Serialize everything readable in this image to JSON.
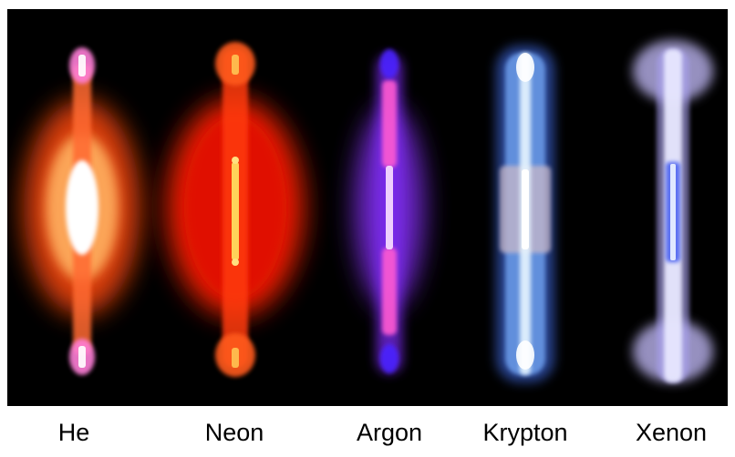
{
  "gases": [
    {
      "name": "He",
      "color": "#ff5a14",
      "core": "#ffffff",
      "accent": "#ff6fd2"
    },
    {
      "name": "Neon",
      "color": "#ff2a08",
      "core": "#ffd25a",
      "accent": "#ff6a1e"
    },
    {
      "name": "Argon",
      "color": "#9a3cff",
      "core": "#f4d8ff",
      "accent": "#ff5ad2"
    },
    {
      "name": "Krypton",
      "color": "#5a8cff",
      "core": "#e8f4ff",
      "accent": "#cfc4d8"
    },
    {
      "name": "Xenon",
      "color": "#b4a8ff",
      "core": "#ffffff",
      "accent": "#5a72ff"
    }
  ]
}
